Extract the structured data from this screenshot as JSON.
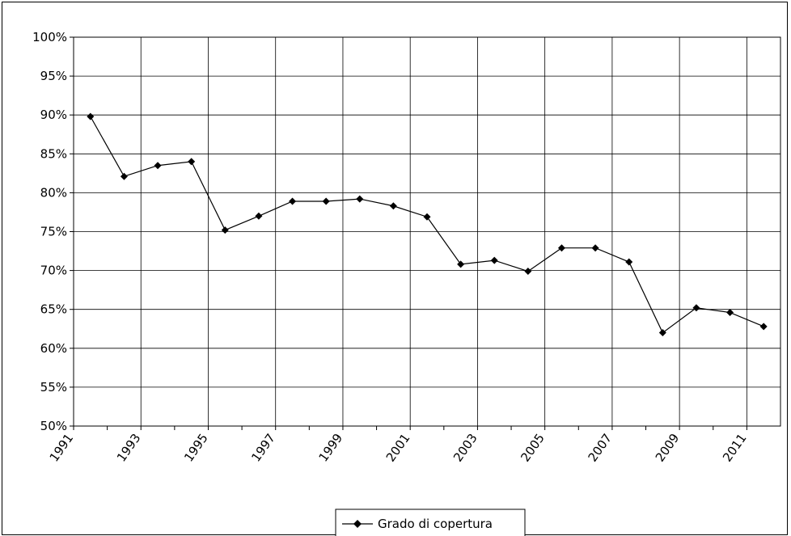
{
  "chart_data": {
    "type": "line",
    "title": "",
    "xlabel": "",
    "ylabel": "",
    "x_ticks": [
      "1991",
      "1993",
      "1995",
      "1997",
      "1999",
      "2001",
      "2003",
      "2005",
      "2007",
      "2009",
      "2011"
    ],
    "y_ticks": [
      "100%",
      "95%",
      "90%",
      "85%",
      "80%",
      "75%",
      "70%",
      "65%",
      "60%",
      "55%",
      "50%"
    ],
    "ylim": [
      50,
      100
    ],
    "xlim": [
      1991,
      2012
    ],
    "grid": true,
    "legend_position": "bottom",
    "series": [
      {
        "name": "Grado di copertura",
        "color": "#000000",
        "marker": "diamond",
        "x": [
          1991.5,
          1992.5,
          1993.5,
          1994.5,
          1995.5,
          1996.5,
          1997.5,
          1998.5,
          1999.5,
          2000.5,
          2001.5,
          2002.5,
          2003.5,
          2004.5,
          2005.5,
          2006.5,
          2007.5,
          2008.5,
          2009.5,
          2010.5,
          2011.5
        ],
        "values": [
          89.8,
          82.1,
          83.5,
          84.0,
          75.2,
          77.0,
          78.9,
          78.9,
          79.2,
          78.3,
          76.9,
          70.8,
          71.3,
          69.9,
          72.9,
          72.9,
          71.1,
          62.0,
          65.2,
          64.6,
          62.8
        ]
      }
    ]
  }
}
